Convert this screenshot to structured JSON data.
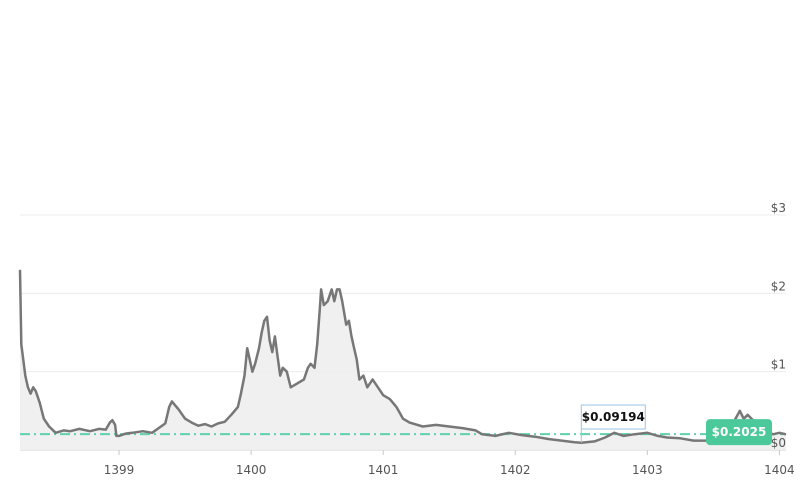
{
  "chart_data": {
    "type": "area",
    "x_ticks": [
      "1399",
      "1400",
      "1401",
      "1402",
      "1403",
      "1404"
    ],
    "y_ticks": [
      "$0",
      "$1",
      "$2",
      "$3"
    ],
    "ylim": [
      0,
      3
    ],
    "xlim": [
      1398.25,
      1404.05
    ],
    "grid": true,
    "line_color": "#777777",
    "fill_color": "#eeeeee",
    "reference_line_color": "#5fd0ad",
    "current_badge_color": "#4cc99a",
    "low_box_color": "#9ac4ea",
    "low_marker": {
      "label": "$0.09194",
      "x": 1402.5,
      "y": 0.09194
    },
    "current_marker": {
      "label": "$0.2025",
      "y": 0.2025
    },
    "series": [
      {
        "values": [
          [
            1398.25,
            2.3
          ],
          [
            1398.26,
            1.35
          ],
          [
            1398.29,
            0.95
          ],
          [
            1398.31,
            0.8
          ],
          [
            1398.33,
            0.72
          ],
          [
            1398.35,
            0.8
          ],
          [
            1398.37,
            0.75
          ],
          [
            1398.4,
            0.6
          ],
          [
            1398.43,
            0.4
          ],
          [
            1398.47,
            0.3
          ],
          [
            1398.52,
            0.22
          ],
          [
            1398.58,
            0.25
          ],
          [
            1398.63,
            0.24
          ],
          [
            1398.7,
            0.27
          ],
          [
            1398.78,
            0.24
          ],
          [
            1398.85,
            0.27
          ],
          [
            1398.9,
            0.26
          ],
          [
            1398.93,
            0.35
          ],
          [
            1398.95,
            0.38
          ],
          [
            1398.97,
            0.32
          ],
          [
            1398.98,
            0.18
          ],
          [
            1399.0,
            0.18
          ],
          [
            1399.05,
            0.21
          ],
          [
            1399.1,
            0.22
          ],
          [
            1399.18,
            0.24
          ],
          [
            1399.25,
            0.22
          ],
          [
            1399.3,
            0.28
          ],
          [
            1399.35,
            0.34
          ],
          [
            1399.38,
            0.55
          ],
          [
            1399.4,
            0.62
          ],
          [
            1399.45,
            0.52
          ],
          [
            1399.5,
            0.4
          ],
          [
            1399.55,
            0.35
          ],
          [
            1399.6,
            0.31
          ],
          [
            1399.65,
            0.33
          ],
          [
            1399.7,
            0.3
          ],
          [
            1399.75,
            0.34
          ],
          [
            1399.8,
            0.36
          ],
          [
            1399.85,
            0.45
          ],
          [
            1399.9,
            0.55
          ],
          [
            1399.92,
            0.7
          ],
          [
            1399.95,
            0.95
          ],
          [
            1399.97,
            1.3
          ],
          [
            1399.99,
            1.15
          ],
          [
            1400.01,
            1.0
          ],
          [
            1400.03,
            1.1
          ],
          [
            1400.06,
            1.3
          ],
          [
            1400.08,
            1.5
          ],
          [
            1400.1,
            1.65
          ],
          [
            1400.12,
            1.7
          ],
          [
            1400.14,
            1.4
          ],
          [
            1400.16,
            1.25
          ],
          [
            1400.18,
            1.45
          ],
          [
            1400.2,
            1.2
          ],
          [
            1400.22,
            0.95
          ],
          [
            1400.24,
            1.05
          ],
          [
            1400.27,
            1.0
          ],
          [
            1400.3,
            0.8
          ],
          [
            1400.35,
            0.85
          ],
          [
            1400.4,
            0.9
          ],
          [
            1400.43,
            1.05
          ],
          [
            1400.45,
            1.1
          ],
          [
            1400.48,
            1.05
          ],
          [
            1400.5,
            1.35
          ],
          [
            1400.52,
            1.8
          ],
          [
            1400.53,
            2.05
          ],
          [
            1400.55,
            1.85
          ],
          [
            1400.58,
            1.9
          ],
          [
            1400.61,
            2.05
          ],
          [
            1400.63,
            1.9
          ],
          [
            1400.65,
            2.05
          ],
          [
            1400.67,
            2.05
          ],
          [
            1400.69,
            1.9
          ],
          [
            1400.72,
            1.6
          ],
          [
            1400.74,
            1.65
          ],
          [
            1400.76,
            1.45
          ],
          [
            1400.78,
            1.3
          ],
          [
            1400.8,
            1.15
          ],
          [
            1400.82,
            0.9
          ],
          [
            1400.85,
            0.95
          ],
          [
            1400.88,
            0.8
          ],
          [
            1400.92,
            0.9
          ],
          [
            1400.96,
            0.8
          ],
          [
            1401.0,
            0.7
          ],
          [
            1401.05,
            0.65
          ],
          [
            1401.1,
            0.55
          ],
          [
            1401.15,
            0.4
          ],
          [
            1401.2,
            0.35
          ],
          [
            1401.3,
            0.3
          ],
          [
            1401.4,
            0.32
          ],
          [
            1401.5,
            0.3
          ],
          [
            1401.6,
            0.28
          ],
          [
            1401.7,
            0.25
          ],
          [
            1401.75,
            0.2
          ],
          [
            1401.85,
            0.18
          ],
          [
            1401.95,
            0.22
          ],
          [
            1402.05,
            0.19
          ],
          [
            1402.15,
            0.17
          ],
          [
            1402.25,
            0.14
          ],
          [
            1402.35,
            0.12
          ],
          [
            1402.45,
            0.1
          ],
          [
            1402.5,
            0.09194
          ],
          [
            1402.6,
            0.11
          ],
          [
            1402.68,
            0.16
          ],
          [
            1402.75,
            0.22
          ],
          [
            1402.82,
            0.18
          ],
          [
            1402.9,
            0.2
          ],
          [
            1403.0,
            0.22
          ],
          [
            1403.08,
            0.18
          ],
          [
            1403.15,
            0.16
          ],
          [
            1403.25,
            0.15
          ],
          [
            1403.35,
            0.12
          ],
          [
            1403.45,
            0.12
          ],
          [
            1403.55,
            0.16
          ],
          [
            1403.62,
            0.25
          ],
          [
            1403.7,
            0.5
          ],
          [
            1403.73,
            0.4
          ],
          [
            1403.76,
            0.45
          ],
          [
            1403.8,
            0.38
          ],
          [
            1403.85,
            0.35
          ],
          [
            1403.9,
            0.25
          ],
          [
            1403.95,
            0.2
          ],
          [
            1404.0,
            0.22
          ],
          [
            1404.05,
            0.2
          ]
        ]
      }
    ]
  }
}
